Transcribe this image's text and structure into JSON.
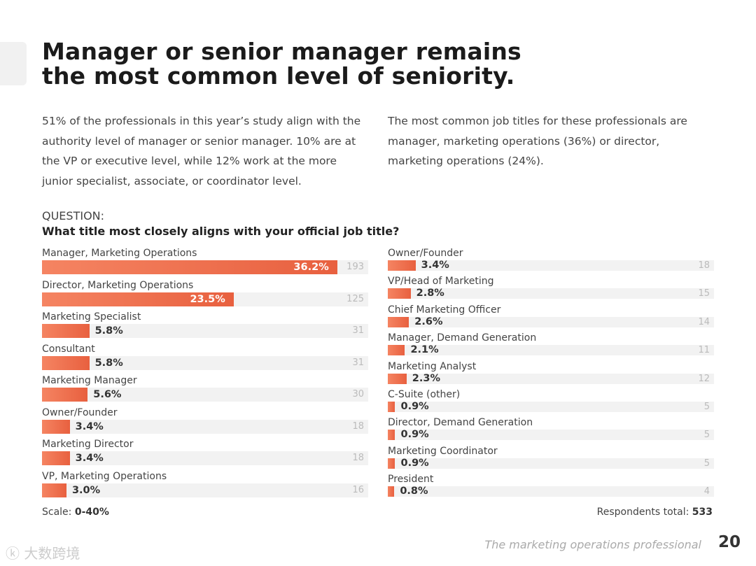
{
  "title": [
    "Manager or senior manager remains",
    "the most common level of seniority."
  ],
  "para_left": "51% of the professionals in this year’s study align with the authority level of manager or senior manager. 10% are at the VP or executive level, while 12% work at the more junior specialist, associate, or coordinator level.",
  "para_right": "The most common job titles for these professionals are manager, marketing operations (36%) or director, marketing operations (24%).",
  "question_label": "QUESTION:",
  "question": "What title most closely aligns with your official job title?",
  "scale_label": "Scale:",
  "scale_value": "0-40%",
  "respondents_label": "Respondents total:",
  "respondents_value": "533",
  "footer_brand": "The marketing operations professional",
  "page_number": "20",
  "watermark": "大数跨境",
  "colors": {
    "bar": "#e8603f",
    "track": "#f2f2f2"
  },
  "chart_data": {
    "type": "bar",
    "orientation": "horizontal",
    "xlim": [
      0,
      40
    ],
    "left": [
      {
        "label": "Manager, Marketing Operations",
        "value": 36.2,
        "pct": "36.2%",
        "count": 193
      },
      {
        "label": "Director, Marketing Operations",
        "value": 23.5,
        "pct": "23.5%",
        "count": 125
      },
      {
        "label": "Marketing Specialist",
        "value": 5.8,
        "pct": "5.8%",
        "count": 31
      },
      {
        "label": "Consultant",
        "value": 5.8,
        "pct": "5.8%",
        "count": 31
      },
      {
        "label": "Marketing Manager",
        "value": 5.6,
        "pct": "5.6%",
        "count": 30
      },
      {
        "label": "Owner/Founder",
        "value": 3.4,
        "pct": "3.4%",
        "count": 18
      },
      {
        "label": "Marketing Director",
        "value": 3.4,
        "pct": "3.4%",
        "count": 18
      },
      {
        "label": "VP, Marketing Operations",
        "value": 3.0,
        "pct": "3.0%",
        "count": 16
      }
    ],
    "right": [
      {
        "label": "Owner/Founder",
        "value": 3.4,
        "pct": "3.4%",
        "count": 18
      },
      {
        "label": "VP/Head of Marketing",
        "value": 2.8,
        "pct": "2.8%",
        "count": 15
      },
      {
        "label": "Chief Marketing Officer",
        "value": 2.6,
        "pct": "2.6%",
        "count": 14
      },
      {
        "label": "Manager, Demand Generation",
        "value": 2.1,
        "pct": "2.1%",
        "count": 11
      },
      {
        "label": "Marketing Analyst",
        "value": 2.3,
        "pct": "2.3%",
        "count": 12
      },
      {
        "label": "C-Suite (other)",
        "value": 0.9,
        "pct": "0.9%",
        "count": 5
      },
      {
        "label": "Director, Demand Generation",
        "value": 0.9,
        "pct": "0.9%",
        "count": 5
      },
      {
        "label": "Marketing Coordinator",
        "value": 0.9,
        "pct": "0.9%",
        "count": 5
      },
      {
        "label": "President",
        "value": 0.8,
        "pct": "0.8%",
        "count": 4
      }
    ]
  }
}
